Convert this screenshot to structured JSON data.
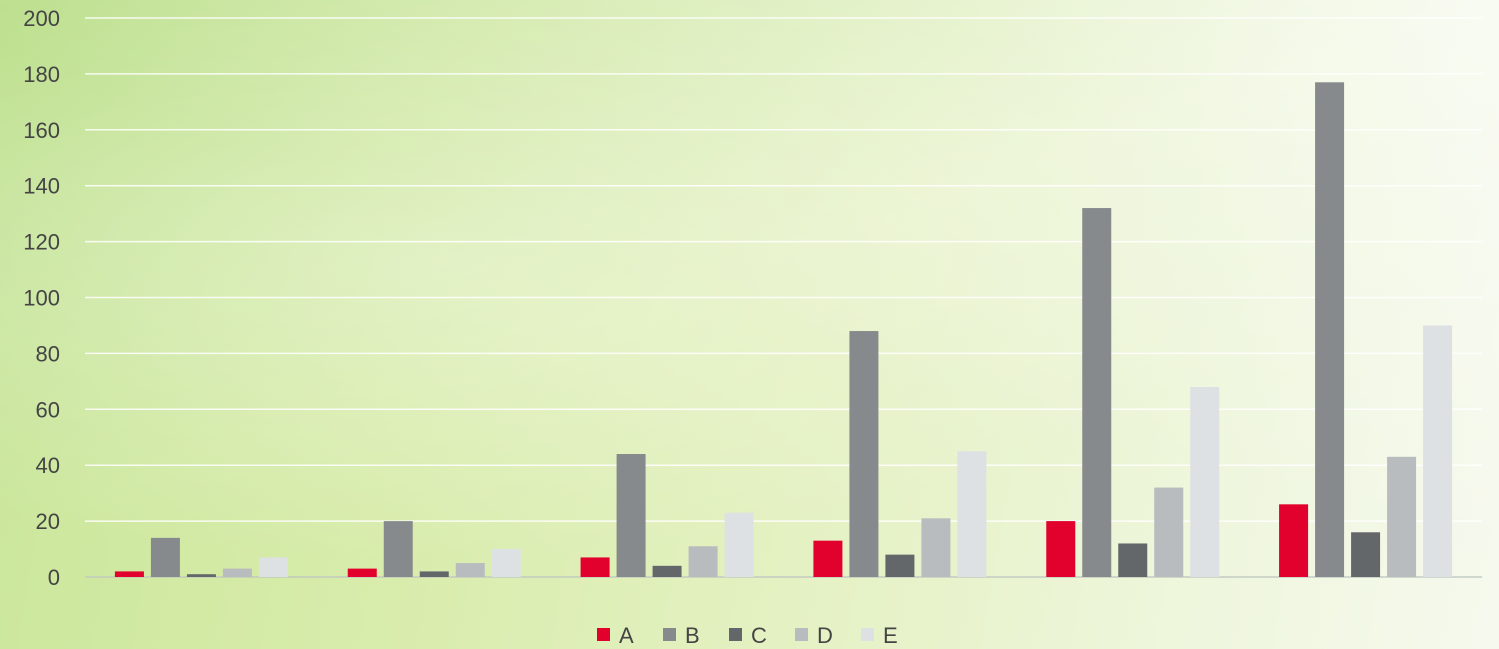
{
  "chart_data": {
    "type": "bar",
    "categories": [
      "",
      "",
      "",
      "",
      "",
      ""
    ],
    "series": [
      {
        "name": "A",
        "values": [
          2,
          3,
          7,
          13,
          20,
          26
        ],
        "color": "#e2002d"
      },
      {
        "name": "B",
        "values": [
          14,
          20,
          44,
          88,
          132,
          177
        ],
        "color": "#878a8c"
      },
      {
        "name": "C",
        "values": [
          1,
          2,
          4,
          8,
          12,
          16
        ],
        "color": "#636769"
      },
      {
        "name": "D",
        "values": [
          3,
          5,
          11,
          21,
          32,
          43
        ],
        "color": "#b9bcbe"
      },
      {
        "name": "E",
        "values": [
          7,
          10,
          23,
          45,
          68,
          90
        ],
        "color": "#dde1e4"
      }
    ],
    "yticks": [
      "0",
      "20",
      "40",
      "60",
      "80",
      "100",
      "120",
      "140",
      "160",
      "180",
      "200"
    ],
    "ylim": [
      0,
      200
    ],
    "title": "",
    "xlabel": "",
    "ylabel": "",
    "grid": true,
    "legend_position": "bottom-center"
  }
}
